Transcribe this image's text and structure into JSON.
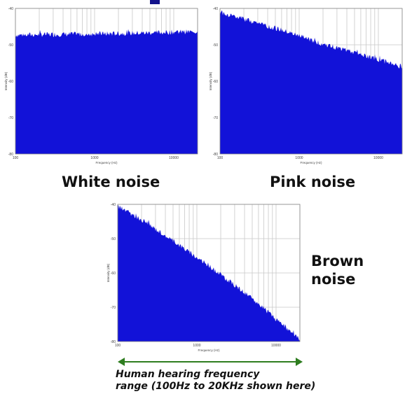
{
  "colors": {
    "fill": "#1212d8",
    "grid": "#c8c8c8",
    "arrow": "#2e7d1f",
    "title_fragment": "#14148c"
  },
  "labels": {
    "white": "White noise",
    "pink": "Pink noise",
    "brown_line1": "Brown",
    "brown_line2": "noise"
  },
  "caption": {
    "line1": "Human hearing frequency",
    "line2": "range (100Hz to 20KHz shown here)"
  },
  "chart_data": [
    {
      "type": "area",
      "name": "white",
      "xlabel": "Frequency (Hz)",
      "ylabel": "Intensity (dB)",
      "xscale": "log",
      "xlim": [
        100,
        20000
      ],
      "ylim": [
        -80,
        -40
      ],
      "x_ticks": [
        100,
        1000,
        10000
      ],
      "x_tick_labels": [
        "100",
        "1000",
        "10000"
      ],
      "y_ticks": [
        -40,
        -50,
        -60,
        -70,
        -80
      ],
      "y_tick_labels": [
        "-40",
        "-50",
        "-60",
        "-70",
        "-80"
      ],
      "grid": true,
      "x": [
        100,
        200,
        500,
        1000,
        2000,
        5000,
        10000,
        20000
      ],
      "y": [
        -47.3,
        -47.2,
        -47.1,
        -47.0,
        -46.9,
        -46.7,
        -46.5,
        -46.4
      ]
    },
    {
      "type": "area",
      "name": "pink",
      "xlabel": "Frequency (Hz)",
      "ylabel": "Intensity (dB)",
      "xscale": "log",
      "xlim": [
        100,
        20000
      ],
      "ylim": [
        -80,
        -40
      ],
      "x_ticks": [
        100,
        1000,
        10000
      ],
      "x_tick_labels": [
        "100",
        "1000",
        "10000"
      ],
      "y_ticks": [
        -40,
        -50,
        -60,
        -70,
        -80
      ],
      "y_tick_labels": [
        "-40",
        "-50",
        "-60",
        "-70",
        "-80"
      ],
      "grid": true,
      "x": [
        100,
        200,
        500,
        1000,
        2000,
        5000,
        10000,
        20000
      ],
      "y": [
        -41.0,
        -43.0,
        -45.4,
        -47.6,
        -49.8,
        -52.2,
        -54.0,
        -56.0
      ]
    },
    {
      "type": "area",
      "name": "brown",
      "xlabel": "Frequency (Hz)",
      "ylabel": "Intensity (dB)",
      "xscale": "log",
      "xlim": [
        100,
        20000
      ],
      "ylim": [
        -80,
        -40
      ],
      "x_ticks": [
        100,
        1000,
        10000
      ],
      "x_tick_labels": [
        "100",
        "1000",
        "10000"
      ],
      "y_ticks": [
        -40,
        -50,
        -60,
        -70,
        -80
      ],
      "y_tick_labels": [
        "-40",
        "-50",
        "-60",
        "-70",
        "-80"
      ],
      "grid": true,
      "x": [
        100,
        200,
        500,
        1000,
        2000,
        5000,
        10000,
        20000
      ],
      "y": [
        -40.5,
        -44.5,
        -50.5,
        -55.5,
        -60.5,
        -67.5,
        -73.5,
        -79.5
      ]
    }
  ]
}
